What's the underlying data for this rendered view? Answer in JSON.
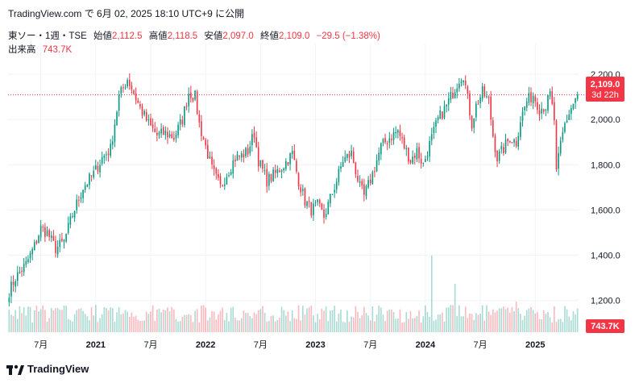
{
  "header": {
    "published": "TradingView.com で 6月 02, 2025 18:10 UTC+9 に公開",
    "symbol": "東ソー・1週・TSE",
    "open_label": "始値",
    "open_value": "2,112.5",
    "high_label": "高値",
    "high_value": "2,118.5",
    "low_label": "安値",
    "low_value": "2,097.0",
    "close_label": "終値",
    "close_value": "2,109.0",
    "change": "−29.5 (−1.38%)",
    "volume_label": "出来高",
    "volume_value": "743.7K"
  },
  "price_tag": {
    "price": "2,109.0",
    "countdown": "3d 22h"
  },
  "volume_tag": "743.7K",
  "footer": {
    "brand": "TradingView"
  },
  "colors": {
    "up": "#089981",
    "down": "#f23645",
    "grid": "#f0f3fa",
    "text": "#131722"
  },
  "chart_data": {
    "type": "candlestick",
    "title": "東ソー・1週・TSE",
    "y_ticks": [
      "2,200.0",
      "2,000.0",
      "1,800.0",
      "1,600.0",
      "1,400.0",
      "1,200.0"
    ],
    "y_tick_values": [
      2200,
      2000,
      1800,
      1600,
      1400,
      1200
    ],
    "ylim": [
      1060,
      2300
    ],
    "x_ticks": [
      "7月",
      "2021",
      "7月",
      "2022",
      "7月",
      "2023",
      "7月",
      "2024",
      "7月",
      "2025"
    ],
    "x_tick_index": [
      15,
      41,
      67,
      93,
      119,
      145,
      171,
      197,
      223,
      249
    ],
    "n_bars": 270,
    "last_price": 2109,
    "anchors": [
      [
        0,
        1240
      ],
      [
        3,
        1300
      ],
      [
        8,
        1360
      ],
      [
        12,
        1440
      ],
      [
        15,
        1520
      ],
      [
        18,
        1500
      ],
      [
        22,
        1430
      ],
      [
        26,
        1460
      ],
      [
        30,
        1580
      ],
      [
        35,
        1700
      ],
      [
        40,
        1760
      ],
      [
        44,
        1830
      ],
      [
        48,
        1870
      ],
      [
        52,
        2100
      ],
      [
        56,
        2180
      ],
      [
        58,
        2140
      ],
      [
        62,
        2050
      ],
      [
        66,
        1980
      ],
      [
        70,
        1930
      ],
      [
        74,
        1940
      ],
      [
        78,
        1920
      ],
      [
        82,
        2000
      ],
      [
        85,
        2120
      ],
      [
        88,
        2100
      ],
      [
        90,
        1980
      ],
      [
        93,
        1880
      ],
      [
        96,
        1780
      ],
      [
        100,
        1700
      ],
      [
        103,
        1760
      ],
      [
        107,
        1830
      ],
      [
        110,
        1840
      ],
      [
        113,
        1860
      ],
      [
        116,
        1940
      ],
      [
        118,
        1820
      ],
      [
        122,
        1730
      ],
      [
        126,
        1760
      ],
      [
        130,
        1800
      ],
      [
        134,
        1850
      ],
      [
        137,
        1730
      ],
      [
        140,
        1640
      ],
      [
        143,
        1600
      ],
      [
        146,
        1620
      ],
      [
        149,
        1570
      ],
      [
        152,
        1650
      ],
      [
        155,
        1730
      ],
      [
        158,
        1820
      ],
      [
        162,
        1850
      ],
      [
        166,
        1700
      ],
      [
        168,
        1660
      ],
      [
        172,
        1760
      ],
      [
        176,
        1880
      ],
      [
        180,
        1920
      ],
      [
        184,
        1950
      ],
      [
        187,
        1880
      ],
      [
        190,
        1820
      ],
      [
        193,
        1860
      ],
      [
        196,
        1800
      ],
      [
        199,
        1890
      ],
      [
        203,
        2000
      ],
      [
        207,
        2060
      ],
      [
        210,
        2120
      ],
      [
        213,
        2180
      ],
      [
        215,
        2200
      ],
      [
        217,
        2090
      ],
      [
        219,
        1980
      ],
      [
        221,
        2060
      ],
      [
        224,
        2120
      ],
      [
        227,
        2080
      ],
      [
        229,
        1930
      ],
      [
        231,
        1830
      ],
      [
        234,
        1870
      ],
      [
        237,
        1920
      ],
      [
        240,
        1900
      ],
      [
        242,
        2000
      ],
      [
        245,
        2080
      ],
      [
        248,
        2110
      ],
      [
        251,
        2050
      ],
      [
        254,
        2060
      ],
      [
        256,
        2110
      ],
      [
        258,
        2000
      ],
      [
        259,
        1760
      ],
      [
        261,
        1890
      ],
      [
        263,
        1980
      ],
      [
        266,
        2050
      ],
      [
        269,
        2109
      ]
    ]
  }
}
